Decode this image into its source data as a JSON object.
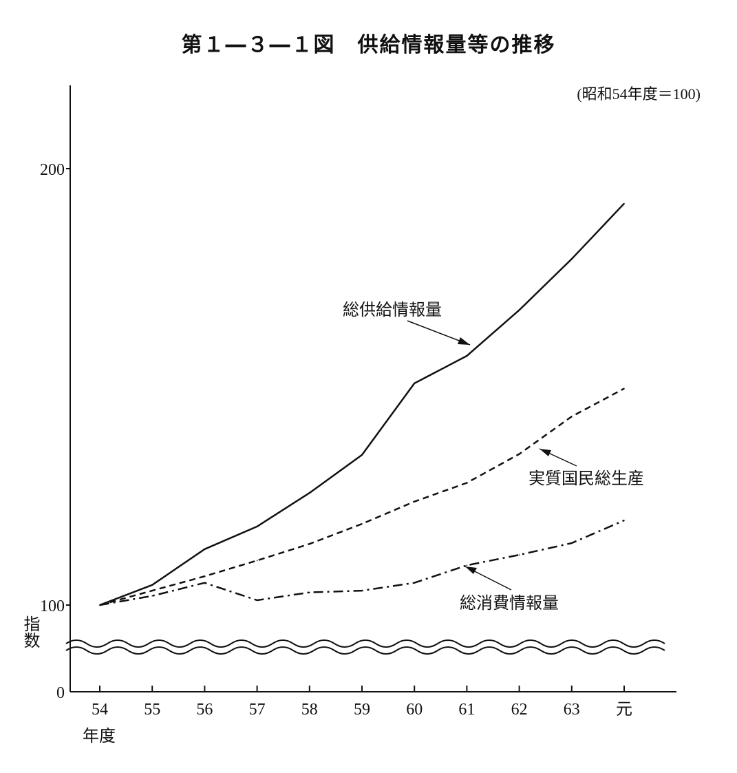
{
  "title": "第１―３―１図　供給情報量等の推移",
  "chart_data": {
    "type": "line",
    "title": "第１―３―１図　供給情報量等の推移",
    "base_note": "(昭和54年度＝100)",
    "xlabel": "年度",
    "ylabel": "指数",
    "categories": [
      "54",
      "55",
      "56",
      "57",
      "58",
      "59",
      "60",
      "61",
      "62",
      "63",
      "元"
    ],
    "y_ticks": [
      "0",
      "100",
      "200"
    ],
    "y_axis_break": true,
    "ylim": [
      0,
      200
    ],
    "series": [
      {
        "name": "総供給情報量",
        "style": "solid",
        "values": [
          100,
          104.6,
          112.8,
          118,
          125.7,
          134.4,
          150.8,
          157.1,
          167.6,
          179.3,
          192
        ]
      },
      {
        "name": "実質国民総生産",
        "style": "dashed",
        "values": [
          100,
          103.3,
          106.6,
          110.2,
          114,
          118.6,
          123.7,
          128,
          134.6,
          143.2,
          149.6
        ]
      },
      {
        "name": "総消費情報量",
        "style": "dashdot",
        "values": [
          100,
          102.1,
          105.1,
          101.1,
          102.9,
          103.3,
          105.1,
          109.1,
          111.5,
          114.2,
          119.4
        ]
      }
    ]
  }
}
